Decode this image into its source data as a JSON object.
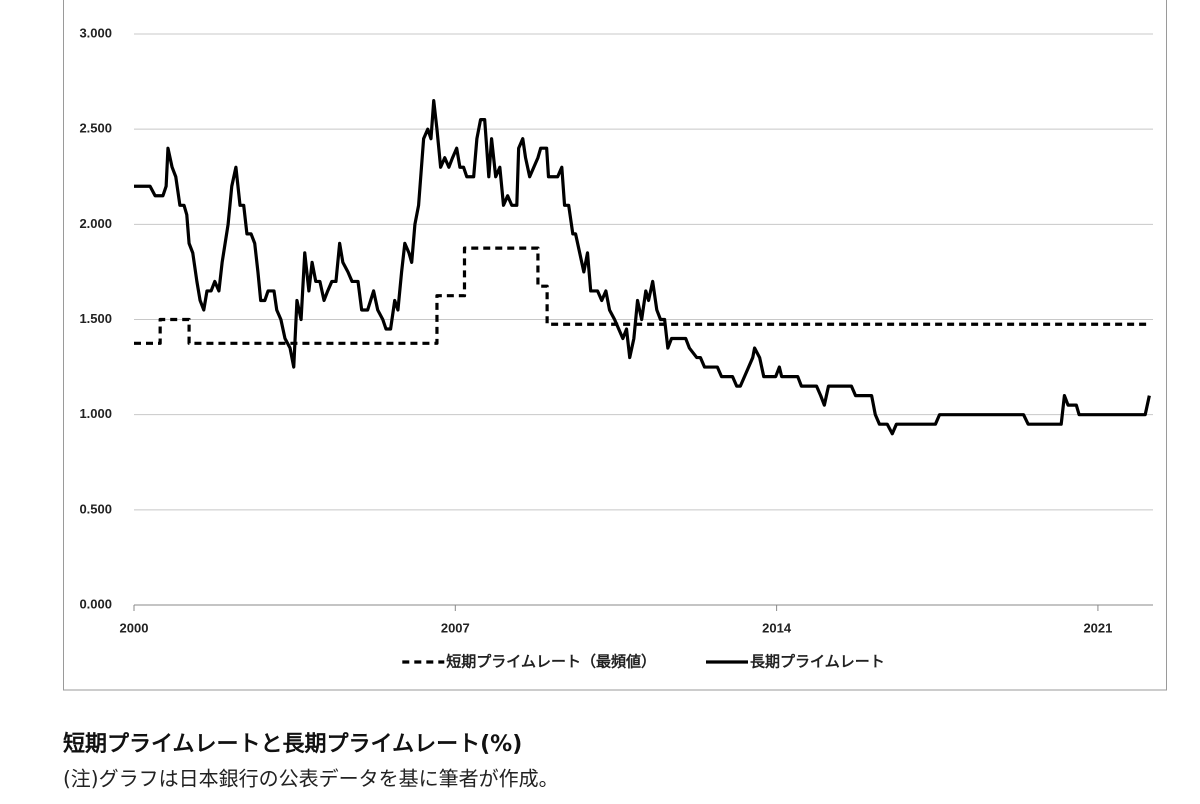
{
  "chart_data": {
    "type": "line",
    "caption": "短期プライムレートと長期プライムレート(%)",
    "note": "(注)グラフは日本銀行の公表データを基に筆者が作成。",
    "xlim": [
      2000,
      2022.2
    ],
    "xticks": [
      2000,
      2007,
      2014,
      2021
    ],
    "ylim": [
      0,
      3
    ],
    "yticks": [
      {
        "value": 0,
        "label": "0.000"
      },
      {
        "value": 0.5,
        "label": "0.500"
      },
      {
        "value": 1,
        "label": "1.000"
      },
      {
        "value": 1.5,
        "label": "1.500"
      },
      {
        "value": 2,
        "label": "2.000"
      },
      {
        "value": 2.5,
        "label": "2.500"
      },
      {
        "value": 3,
        "label": "3.000"
      }
    ],
    "grid": true,
    "legend": "bottom",
    "series": [
      {
        "name": "短期プライムレート（最頻値）",
        "color": "#000000",
        "line_style": "dashed",
        "x": [
          2000,
          2000.57,
          2000.57,
          2001.2,
          2001.2,
          2006.6,
          2006.6,
          2007.2,
          2007.2,
          2008.8,
          2008.8,
          2009.0,
          2009.0,
          2022.12
        ],
        "values": [
          1.375,
          1.375,
          1.5,
          1.5,
          1.375,
          1.375,
          1.625,
          1.625,
          1.875,
          1.875,
          1.675,
          1.675,
          1.475,
          1.475
        ]
      },
      {
        "name": "長期プライムレート",
        "color": "#000000",
        "line_style": "solid",
        "x": [
          2000.0,
          2000.35,
          2000.46,
          2000.63,
          2000.7,
          2000.74,
          2000.83,
          2000.91,
          2001.0,
          2001.09,
          2001.15,
          2001.2,
          2001.28,
          2001.37,
          2001.44,
          2001.52,
          2001.59,
          2001.68,
          2001.76,
          2001.85,
          2001.92,
          2002.05,
          2002.13,
          2002.22,
          2002.31,
          2002.39,
          2002.46,
          2002.55,
          2002.63,
          2002.7,
          2002.76,
          2002.85,
          2002.92,
          2003.05,
          2003.11,
          2003.2,
          2003.29,
          2003.4,
          2003.48,
          2003.55,
          2003.64,
          2003.72,
          2003.81,
          2003.88,
          2003.96,
          2004.05,
          2004.14,
          2004.22,
          2004.31,
          2004.4,
          2004.48,
          2004.55,
          2004.66,
          2004.75,
          2004.88,
          2004.96,
          2005.09,
          2005.22,
          2005.31,
          2005.42,
          2005.49,
          2005.59,
          2005.68,
          2005.75,
          2005.83,
          2005.9,
          2005.99,
          2006.05,
          2006.12,
          2006.2,
          2006.31,
          2006.4,
          2006.47,
          2006.53,
          2006.6,
          2006.68,
          2006.77,
          2006.86,
          2006.94,
          2007.03,
          2007.1,
          2007.18,
          2007.25,
          2007.4,
          2007.47,
          2007.55,
          2007.64,
          2007.73,
          2007.79,
          2007.88,
          2007.97,
          2008.05,
          2008.14,
          2008.23,
          2008.34,
          2008.38,
          2008.47,
          2008.53,
          2008.62,
          2008.71,
          2008.8,
          2008.86,
          2008.99,
          2009.03,
          2009.23,
          2009.32,
          2009.38,
          2009.47,
          2009.56,
          2009.62,
          2009.71,
          2009.8,
          2009.88,
          2009.95,
          2010.1,
          2010.19,
          2010.28,
          2010.36,
          2010.47,
          2010.56,
          2010.65,
          2010.73,
          2010.8,
          2010.89,
          2010.97,
          2011.06,
          2011.15,
          2011.21,
          2011.3,
          2011.39,
          2011.47,
          2011.56,
          2011.63,
          2011.71,
          2012.02,
          2012.1,
          2012.26,
          2012.34,
          2012.43,
          2012.71,
          2012.8,
          2013.04,
          2013.13,
          2013.21,
          2013.3,
          2013.39,
          2013.48,
          2013.52,
          2013.63,
          2013.72,
          2013.98,
          2014.06,
          2014.11,
          2014.46,
          2014.54,
          2014.87,
          2014.96,
          2015.04,
          2015.13,
          2015.63,
          2015.72,
          2016.07,
          2016.15,
          2016.24,
          2016.41,
          2016.52,
          2016.61,
          2017.46,
          2017.55,
          2019.38,
          2019.48,
          2020.2,
          2020.27,
          2020.35,
          2020.53,
          2020.59,
          2022.03,
          2022.12
        ],
        "values": [
          2.2,
          2.2,
          2.15,
          2.15,
          2.2,
          2.4,
          2.3,
          2.25,
          2.1,
          2.1,
          2.05,
          1.9,
          1.85,
          1.7,
          1.6,
          1.55,
          1.65,
          1.65,
          1.7,
          1.65,
          1.8,
          2.0,
          2.2,
          2.3,
          2.1,
          2.1,
          1.95,
          1.95,
          1.9,
          1.75,
          1.6,
          1.6,
          1.65,
          1.65,
          1.55,
          1.5,
          1.4,
          1.35,
          1.25,
          1.6,
          1.5,
          1.85,
          1.65,
          1.8,
          1.7,
          1.7,
          1.6,
          1.65,
          1.7,
          1.7,
          1.9,
          1.8,
          1.75,
          1.7,
          1.7,
          1.55,
          1.55,
          1.65,
          1.55,
          1.5,
          1.45,
          1.45,
          1.6,
          1.55,
          1.75,
          1.9,
          1.85,
          1.8,
          2.0,
          2.1,
          2.45,
          2.5,
          2.45,
          2.65,
          2.5,
          2.3,
          2.35,
          2.3,
          2.35,
          2.4,
          2.3,
          2.3,
          2.25,
          2.25,
          2.45,
          2.55,
          2.55,
          2.25,
          2.45,
          2.25,
          2.3,
          2.1,
          2.15,
          2.1,
          2.1,
          2.4,
          2.45,
          2.35,
          2.25,
          2.3,
          2.35,
          2.4,
          2.4,
          2.25,
          2.25,
          2.3,
          2.1,
          2.1,
          1.95,
          1.95,
          1.85,
          1.75,
          1.85,
          1.65,
          1.65,
          1.6,
          1.65,
          1.55,
          1.5,
          1.45,
          1.4,
          1.45,
          1.3,
          1.4,
          1.6,
          1.5,
          1.65,
          1.6,
          1.7,
          1.55,
          1.5,
          1.5,
          1.35,
          1.4,
          1.4,
          1.35,
          1.3,
          1.3,
          1.25,
          1.25,
          1.2,
          1.2,
          1.15,
          1.15,
          1.2,
          1.25,
          1.3,
          1.35,
          1.3,
          1.2,
          1.2,
          1.25,
          1.2,
          1.2,
          1.15,
          1.15,
          1.1,
          1.05,
          1.15,
          1.15,
          1.1,
          1.1,
          1.0,
          0.95,
          0.95,
          0.9,
          0.95,
          0.95,
          1.0,
          1.0,
          0.95,
          0.95,
          1.1,
          1.05,
          1.05,
          1.0,
          1.0,
          1.1
        ]
      }
    ]
  }
}
